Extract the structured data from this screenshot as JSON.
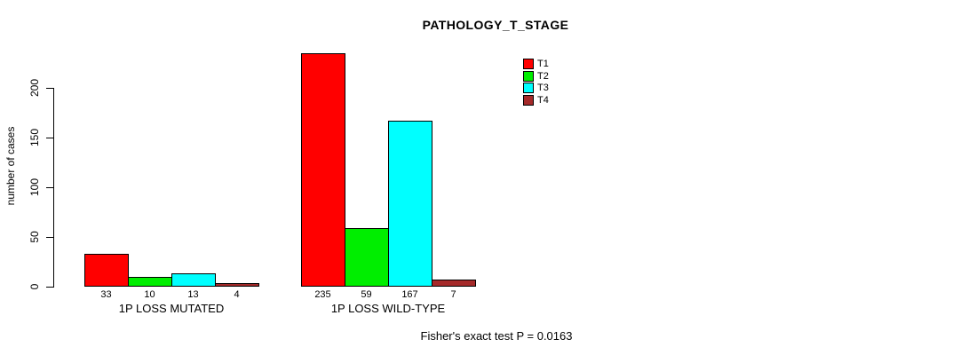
{
  "figure": {
    "title": "PATHOLOGY_T_STAGE",
    "ylabel": "number of cases",
    "footer": "Fisher's exact test P = 0.0163"
  },
  "chart_data": {
    "type": "bar",
    "title": "PATHOLOGY_T_STAGE",
    "xlabel": "",
    "ylabel": "number of cases",
    "categories": [
      "1P LOSS MUTATED",
      "1P LOSS WILD-TYPE"
    ],
    "series": [
      {
        "name": "T1",
        "color": "#ff0000",
        "values": [
          33,
          235
        ]
      },
      {
        "name": "T2",
        "color": "#00ee00",
        "values": [
          10,
          59
        ]
      },
      {
        "name": "T3",
        "color": "#00ffff",
        "values": [
          13,
          167
        ]
      },
      {
        "name": "T4",
        "color": "#a52a2a",
        "values": [
          4,
          7
        ]
      }
    ],
    "bar_value_labels": [
      [
        "33",
        "10",
        "13",
        "4"
      ],
      [
        "235",
        "59",
        "167",
        "7"
      ]
    ],
    "yticks": [
      0,
      50,
      100,
      150,
      200
    ],
    "ylim": [
      0,
      237
    ],
    "grid": false,
    "legend_position": "top-right",
    "annotation": "Fisher's exact test P = 0.0163"
  }
}
